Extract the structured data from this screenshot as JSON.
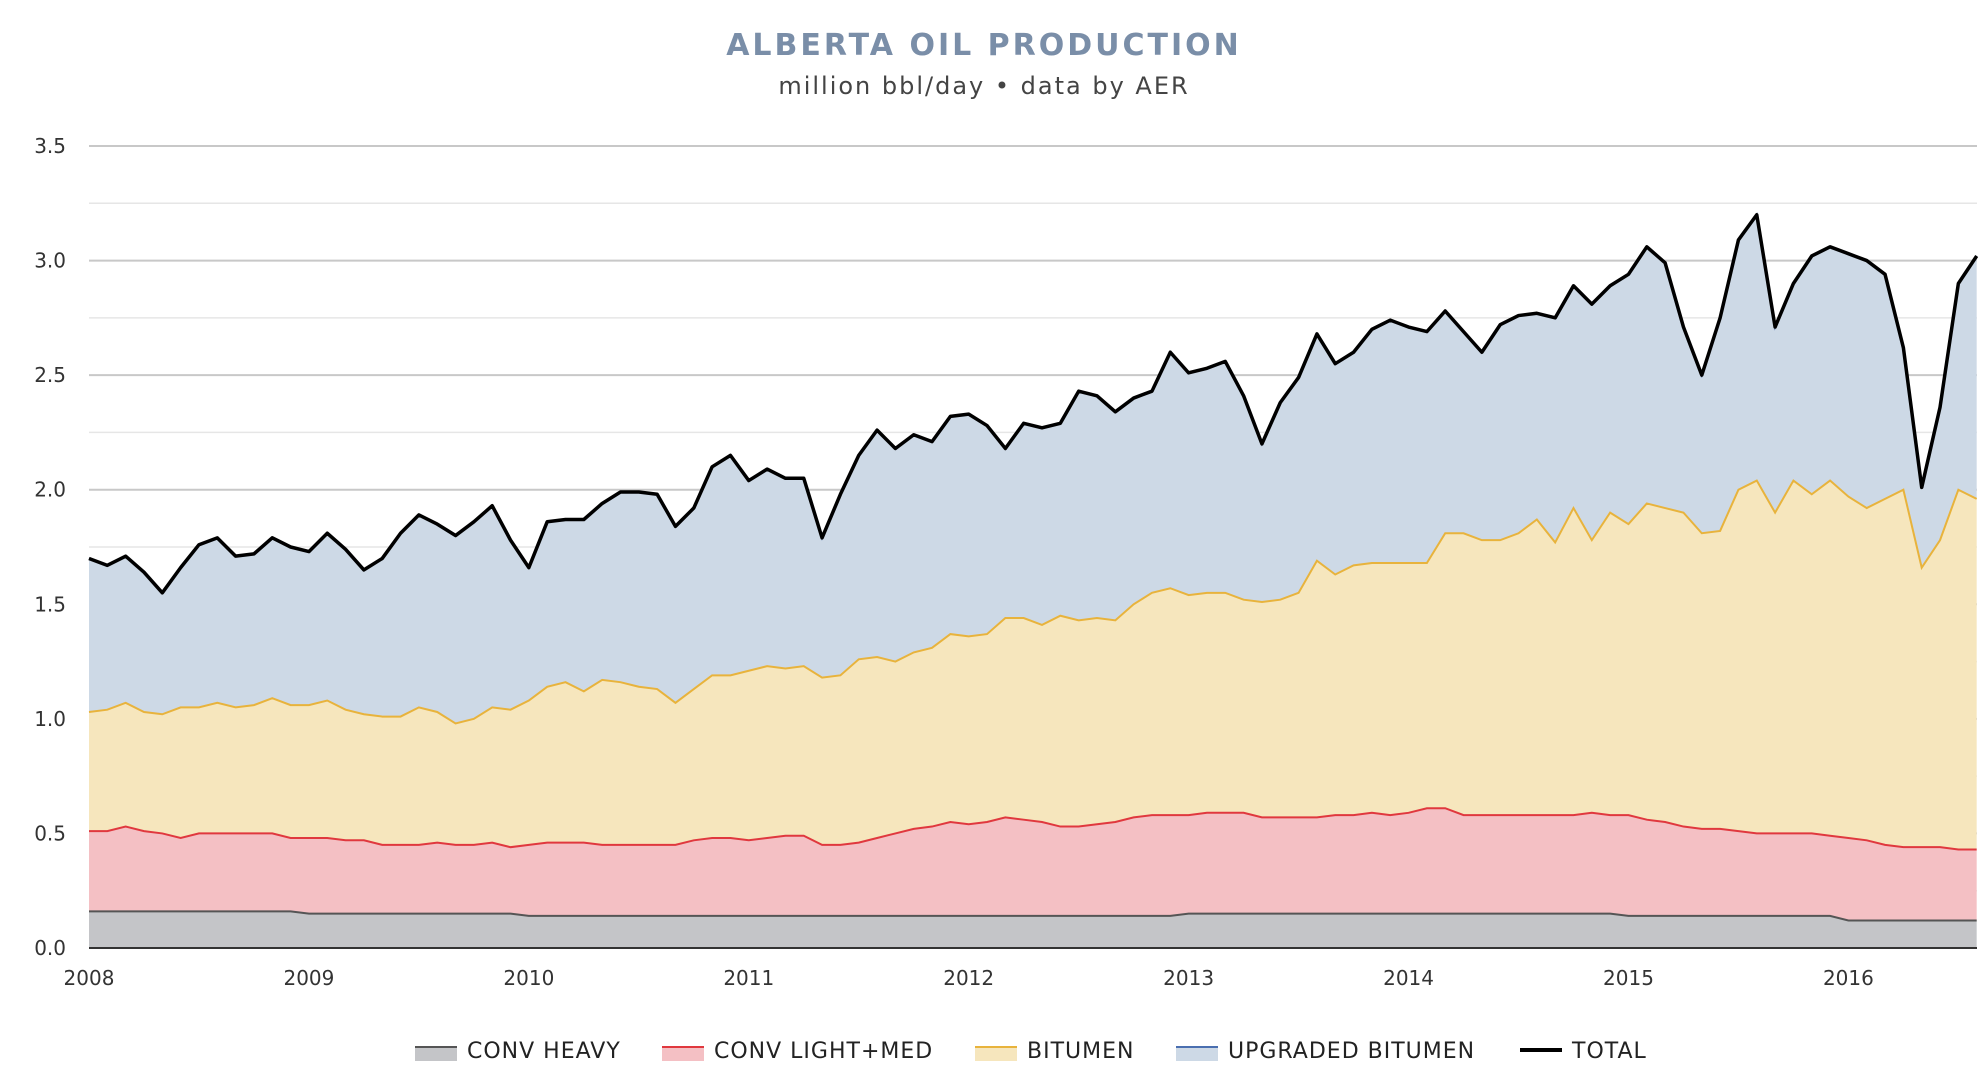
{
  "chart_data": {
    "type": "area",
    "stacked": true,
    "title": "ALBERTA OIL PRODUCTION",
    "subtitle": "million bbl/day • data by AER",
    "x_start": "2008-01",
    "x_end": "2016-08",
    "x_interval": "month",
    "xticks": [
      "2008",
      "2009",
      "2010",
      "2011",
      "2012",
      "2013",
      "2014",
      "2015",
      "2016"
    ],
    "yticks": [
      "0.0",
      "0.5",
      "1.0",
      "1.5",
      "2.0",
      "2.5",
      "3.0",
      "3.5"
    ],
    "ylim": [
      0,
      3.5
    ],
    "grid": true,
    "legend_position": "bottom",
    "series": [
      {
        "name": "CONV HEAVY",
        "fill": "#c4c5c8",
        "line": "#555555",
        "values": [
          0.16,
          0.16,
          0.16,
          0.16,
          0.16,
          0.16,
          0.16,
          0.16,
          0.16,
          0.16,
          0.16,
          0.16,
          0.15,
          0.15,
          0.15,
          0.15,
          0.15,
          0.15,
          0.15,
          0.15,
          0.15,
          0.15,
          0.15,
          0.15,
          0.14,
          0.14,
          0.14,
          0.14,
          0.14,
          0.14,
          0.14,
          0.14,
          0.14,
          0.14,
          0.14,
          0.14,
          0.14,
          0.14,
          0.14,
          0.14,
          0.14,
          0.14,
          0.14,
          0.14,
          0.14,
          0.14,
          0.14,
          0.14,
          0.14,
          0.14,
          0.14,
          0.14,
          0.14,
          0.14,
          0.14,
          0.14,
          0.14,
          0.14,
          0.14,
          0.14,
          0.15,
          0.15,
          0.15,
          0.15,
          0.15,
          0.15,
          0.15,
          0.15,
          0.15,
          0.15,
          0.15,
          0.15,
          0.15,
          0.15,
          0.15,
          0.15,
          0.15,
          0.15,
          0.15,
          0.15,
          0.15,
          0.15,
          0.15,
          0.15,
          0.14,
          0.14,
          0.14,
          0.14,
          0.14,
          0.14,
          0.14,
          0.14,
          0.14,
          0.14,
          0.14,
          0.14,
          0.12,
          0.12,
          0.12,
          0.12,
          0.12,
          0.12,
          0.12,
          0.12
        ]
      },
      {
        "name": "CONV LIGHT+MED",
        "fill": "#f4c0c4",
        "line": "#e0383e",
        "values": [
          0.35,
          0.35,
          0.37,
          0.35,
          0.34,
          0.32,
          0.34,
          0.34,
          0.34,
          0.34,
          0.34,
          0.32,
          0.33,
          0.33,
          0.32,
          0.32,
          0.3,
          0.3,
          0.3,
          0.31,
          0.3,
          0.3,
          0.31,
          0.29,
          0.31,
          0.32,
          0.32,
          0.32,
          0.31,
          0.31,
          0.31,
          0.31,
          0.31,
          0.33,
          0.34,
          0.34,
          0.33,
          0.34,
          0.35,
          0.35,
          0.31,
          0.31,
          0.32,
          0.34,
          0.36,
          0.38,
          0.39,
          0.41,
          0.4,
          0.41,
          0.43,
          0.42,
          0.41,
          0.39,
          0.39,
          0.4,
          0.41,
          0.43,
          0.44,
          0.44,
          0.43,
          0.44,
          0.44,
          0.44,
          0.42,
          0.42,
          0.42,
          0.42,
          0.43,
          0.43,
          0.44,
          0.43,
          0.44,
          0.46,
          0.46,
          0.43,
          0.43,
          0.43,
          0.43,
          0.43,
          0.43,
          0.43,
          0.44,
          0.43,
          0.44,
          0.42,
          0.41,
          0.39,
          0.38,
          0.38,
          0.37,
          0.36,
          0.36,
          0.36,
          0.36,
          0.35,
          0.36,
          0.35,
          0.33,
          0.32,
          0.32,
          0.32,
          0.31,
          0.31
        ]
      },
      {
        "name": "BITUMEN",
        "fill": "#f6e6bd",
        "line": "#e8b33c",
        "values": [
          0.52,
          0.53,
          0.54,
          0.52,
          0.52,
          0.57,
          0.55,
          0.57,
          0.55,
          0.56,
          0.59,
          0.58,
          0.58,
          0.6,
          0.57,
          0.55,
          0.56,
          0.56,
          0.6,
          0.57,
          0.53,
          0.55,
          0.59,
          0.6,
          0.63,
          0.68,
          0.7,
          0.66,
          0.72,
          0.71,
          0.69,
          0.68,
          0.62,
          0.66,
          0.71,
          0.71,
          0.74,
          0.75,
          0.73,
          0.74,
          0.73,
          0.74,
          0.8,
          0.79,
          0.75,
          0.77,
          0.78,
          0.82,
          0.82,
          0.82,
          0.87,
          0.88,
          0.86,
          0.92,
          0.9,
          0.9,
          0.88,
          0.93,
          0.97,
          0.99,
          0.96,
          0.96,
          0.96,
          0.93,
          0.94,
          0.95,
          0.98,
          1.12,
          1.05,
          1.09,
          1.09,
          1.1,
          1.09,
          1.07,
          1.2,
          1.23,
          1.2,
          1.2,
          1.23,
          1.29,
          1.19,
          1.34,
          1.19,
          1.32,
          1.27,
          1.38,
          1.37,
          1.37,
          1.29,
          1.3,
          1.49,
          1.54,
          1.4,
          1.54,
          1.48,
          1.55,
          1.49,
          1.45,
          1.51,
          1.56,
          1.22,
          1.34,
          1.57,
          1.53
        ]
      },
      {
        "name": "UPGRADED BITUMEN",
        "fill": "#cdd9e6",
        "line": "#4a6fb0",
        "values": [
          0.67,
          0.63,
          0.64,
          0.61,
          0.53,
          0.61,
          0.71,
          0.72,
          0.66,
          0.66,
          0.7,
          0.69,
          0.67,
          0.73,
          0.7,
          0.63,
          0.69,
          0.8,
          0.84,
          0.82,
          0.82,
          0.86,
          0.88,
          0.74,
          0.58,
          0.72,
          0.71,
          0.75,
          0.77,
          0.83,
          0.85,
          0.85,
          0.77,
          0.79,
          0.91,
          0.96,
          0.83,
          0.86,
          0.83,
          0.82,
          0.61,
          0.79,
          0.89,
          0.99,
          0.93,
          0.95,
          0.9,
          0.95,
          0.97,
          0.91,
          0.74,
          0.85,
          0.86,
          0.84,
          1.0,
          0.97,
          0.91,
          0.9,
          0.88,
          1.03,
          0.97,
          0.98,
          1.01,
          0.89,
          0.69,
          0.86,
          0.94,
          0.99,
          0.92,
          0.93,
          1.02,
          1.06,
          1.03,
          1.01,
          0.97,
          0.88,
          0.82,
          0.94,
          0.95,
          0.9,
          0.98,
          0.97,
          1.03,
          0.99,
          1.09,
          1.12,
          1.07,
          0.81,
          0.69,
          0.93,
          1.09,
          1.16,
          0.81,
          0.86,
          1.04,
          1.02,
          1.06,
          1.08,
          0.98,
          0.62,
          0.35,
          0.58,
          0.9,
          1.06
        ]
      },
      {
        "name": "TOTAL",
        "line": "#000000",
        "values": [
          1.7,
          1.67,
          1.71,
          1.64,
          1.55,
          1.66,
          1.76,
          1.79,
          1.71,
          1.72,
          1.79,
          1.75,
          1.73,
          1.81,
          1.74,
          1.65,
          1.7,
          1.81,
          1.89,
          1.85,
          1.8,
          1.86,
          1.93,
          1.78,
          1.66,
          1.86,
          1.87,
          1.87,
          1.94,
          1.99,
          1.99,
          1.98,
          1.84,
          1.92,
          2.1,
          2.15,
          2.04,
          2.09,
          2.05,
          2.05,
          1.79,
          1.98,
          2.15,
          2.26,
          2.18,
          2.24,
          2.21,
          2.32,
          2.33,
          2.28,
          2.18,
          2.29,
          2.27,
          2.29,
          2.43,
          2.41,
          2.34,
          2.4,
          2.43,
          2.6,
          2.51,
          2.53,
          2.56,
          2.41,
          2.2,
          2.38,
          2.49,
          2.68,
          2.55,
          2.6,
          2.7,
          2.74,
          2.71,
          2.69,
          2.78,
          2.69,
          2.6,
          2.72,
          2.76,
          2.77,
          2.75,
          2.89,
          2.81,
          2.89,
          2.94,
          3.06,
          2.99,
          2.71,
          2.5,
          2.75,
          3.09,
          3.2,
          2.71,
          2.9,
          3.02,
          3.06,
          3.03,
          3.0,
          2.94,
          2.62,
          2.01,
          2.36,
          2.9,
          3.02
        ]
      }
    ],
    "colors": {
      "title": "#7a8ea8",
      "grid": "#cfcfcf",
      "axis": "#333333"
    }
  }
}
